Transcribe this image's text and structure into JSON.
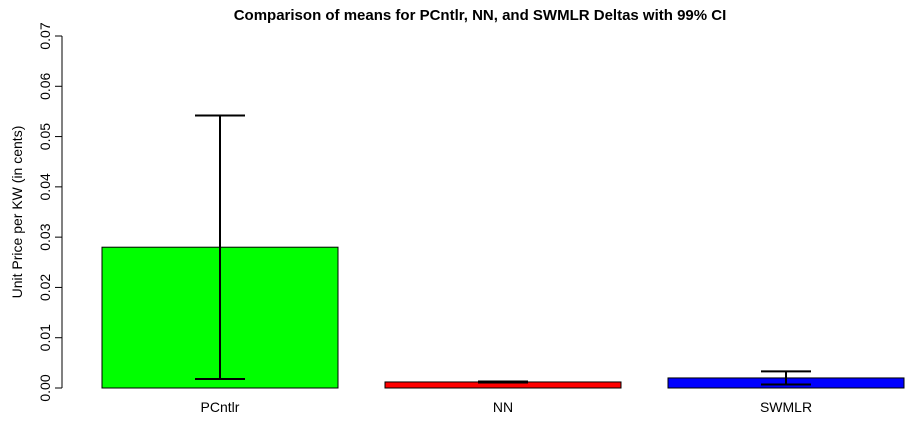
{
  "chart_data": {
    "type": "bar",
    "title": "Comparison of means for PCntlr, NN, and SWMLR Deltas with 99% CI",
    "y_label": "Unit Price  per KW (in cents)",
    "categories": [
      "PCntlr",
      "NN",
      "SWMLR"
    ],
    "values": [
      0.028,
      0.0012,
      0.002
    ],
    "errors": [
      0.0262,
      0.0001,
      0.0013
    ],
    "colors": [
      "#00ff00",
      "#ff0000",
      "#0000ff"
    ],
    "ylim": [
      0,
      0.07
    ],
    "yticks": [
      {
        "value": 0,
        "label": "0.00"
      },
      {
        "value": 0.01,
        "label": "0.01"
      },
      {
        "value": 0.02,
        "label": "0.02"
      },
      {
        "value": 0.03,
        "label": "0.03"
      },
      {
        "value": 0.04,
        "label": "0.04"
      },
      {
        "value": 0.05,
        "label": "0.05"
      },
      {
        "value": 0.06,
        "label": "0.06"
      },
      {
        "value": 0.07,
        "label": "0.07"
      }
    ]
  }
}
